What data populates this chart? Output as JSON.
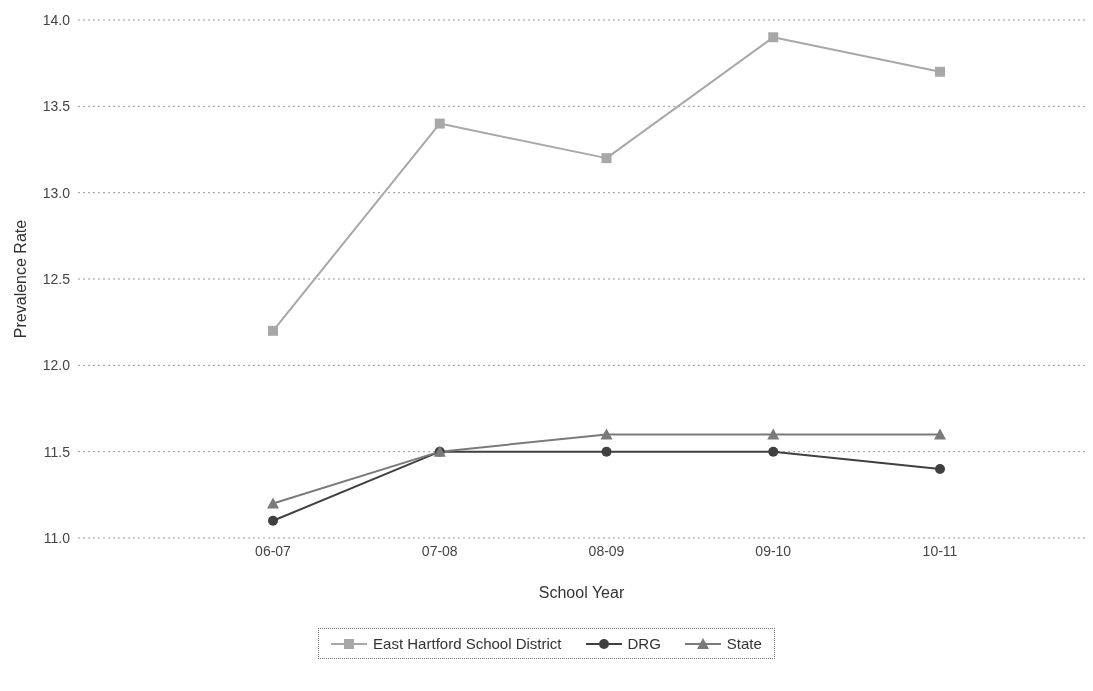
{
  "chart_data": {
    "type": "line",
    "xlabel": "School Year",
    "ylabel": "Prevalence Rate",
    "categories": [
      "06-07",
      "07-08",
      "08-09",
      "09-10",
      "10-11"
    ],
    "series": [
      {
        "name": "East Hartford School District",
        "color": "#a8a8a8",
        "marker": "square",
        "values": [
          12.2,
          13.4,
          13.2,
          13.9,
          13.7
        ]
      },
      {
        "name": "DRG",
        "color": "#404040",
        "marker": "circle",
        "values": [
          11.1,
          11.5,
          11.5,
          11.5,
          11.4
        ]
      },
      {
        "name": "State",
        "color": "#7a7a7a",
        "marker": "triangle",
        "values": [
          11.2,
          11.5,
          11.6,
          11.6,
          11.6
        ]
      }
    ],
    "ylim": [
      11.0,
      14.0
    ],
    "yticks": [
      {
        "value": 11,
        "label": "11.0"
      },
      11.5,
      {
        "value": 12,
        "label": "12.0"
      },
      12.5,
      {
        "value": 13,
        "label": "13.0"
      },
      13.5,
      {
        "value": 14,
        "label": "14.0"
      }
    ],
    "grid": "y",
    "legend": "bottom"
  }
}
